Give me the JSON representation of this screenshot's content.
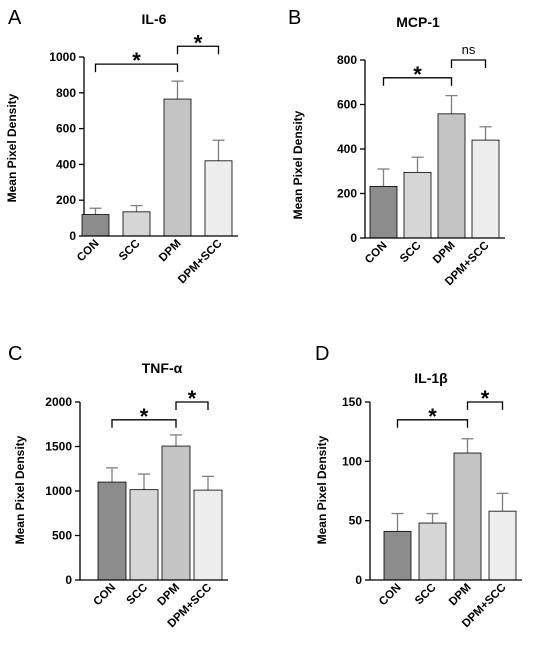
{
  "colors": {
    "bar_fills": [
      "#8c8c8c",
      "#d6d6d6",
      "#c4c4c4",
      "#ededed"
    ],
    "bar_stroke": "#000000",
    "error_bar": "#7f7f7f",
    "axis": "#000000"
  },
  "chart_data": [
    {
      "type": "bar",
      "panel": "A",
      "title": "IL-6",
      "ylabel": "Mean Pixel Density",
      "xlabel": "",
      "categories": [
        "CON",
        "SCC",
        "DPM",
        "DPM+SCC"
      ],
      "values": [
        120,
        135,
        765,
        420
      ],
      "errors": [
        35,
        35,
        100,
        115
      ],
      "ylim": [
        0,
        1000
      ],
      "yticks": [
        0,
        200,
        400,
        600,
        800,
        1000
      ],
      "legend": false,
      "grid": false,
      "annotations": [
        {
          "from": 0,
          "to": 2,
          "y": 960,
          "label": "*"
        },
        {
          "from": 2,
          "to": 3,
          "y": 1060,
          "label": "*"
        }
      ]
    },
    {
      "type": "bar",
      "panel": "B",
      "title": "MCP-1",
      "ylabel": "Mean Pixel Density",
      "xlabel": "",
      "categories": [
        "CON",
        "SCC",
        "DPM",
        "DPM+SCC"
      ],
      "values": [
        232,
        295,
        558,
        440
      ],
      "errors": [
        78,
        68,
        82,
        60
      ],
      "ylim": [
        0,
        800
      ],
      "yticks": [
        0,
        200,
        400,
        600,
        800
      ],
      "legend": false,
      "grid": false,
      "annotations": [
        {
          "from": 0,
          "to": 2,
          "y": 720,
          "label": "*"
        },
        {
          "from": 2,
          "to": 3,
          "y": 800,
          "label": "ns"
        }
      ]
    },
    {
      "type": "bar",
      "panel": "C",
      "title": "TNF-α",
      "ylabel": "Mean Pixel Density",
      "xlabel": "",
      "categories": [
        "CON",
        "SCC",
        "DPM",
        "DPM+SCC"
      ],
      "values": [
        1100,
        1015,
        1505,
        1010
      ],
      "errors": [
        160,
        175,
        125,
        155
      ],
      "ylim": [
        0,
        2000
      ],
      "yticks": [
        0,
        500,
        1000,
        1500,
        2000
      ],
      "legend": false,
      "grid": false,
      "annotations": [
        {
          "from": 0,
          "to": 2,
          "y": 1800,
          "label": "*"
        },
        {
          "from": 2,
          "to": 3,
          "y": 2000,
          "label": "*"
        }
      ]
    },
    {
      "type": "bar",
      "panel": "D",
      "title": "IL-1β",
      "ylabel": "Mean Pixel Density",
      "xlabel": "",
      "categories": [
        "CON",
        "SCC",
        "DPM",
        "DPM+SCC"
      ],
      "values": [
        41,
        48,
        107,
        58
      ],
      "errors": [
        15,
        8,
        12,
        15
      ],
      "ylim": [
        0,
        150
      ],
      "yticks": [
        0,
        50,
        100,
        150
      ],
      "legend": false,
      "grid": false,
      "annotations": [
        {
          "from": 0,
          "to": 2,
          "y": 135,
          "label": "*"
        },
        {
          "from": 2,
          "to": 3,
          "y": 150,
          "label": "*"
        }
      ]
    }
  ]
}
